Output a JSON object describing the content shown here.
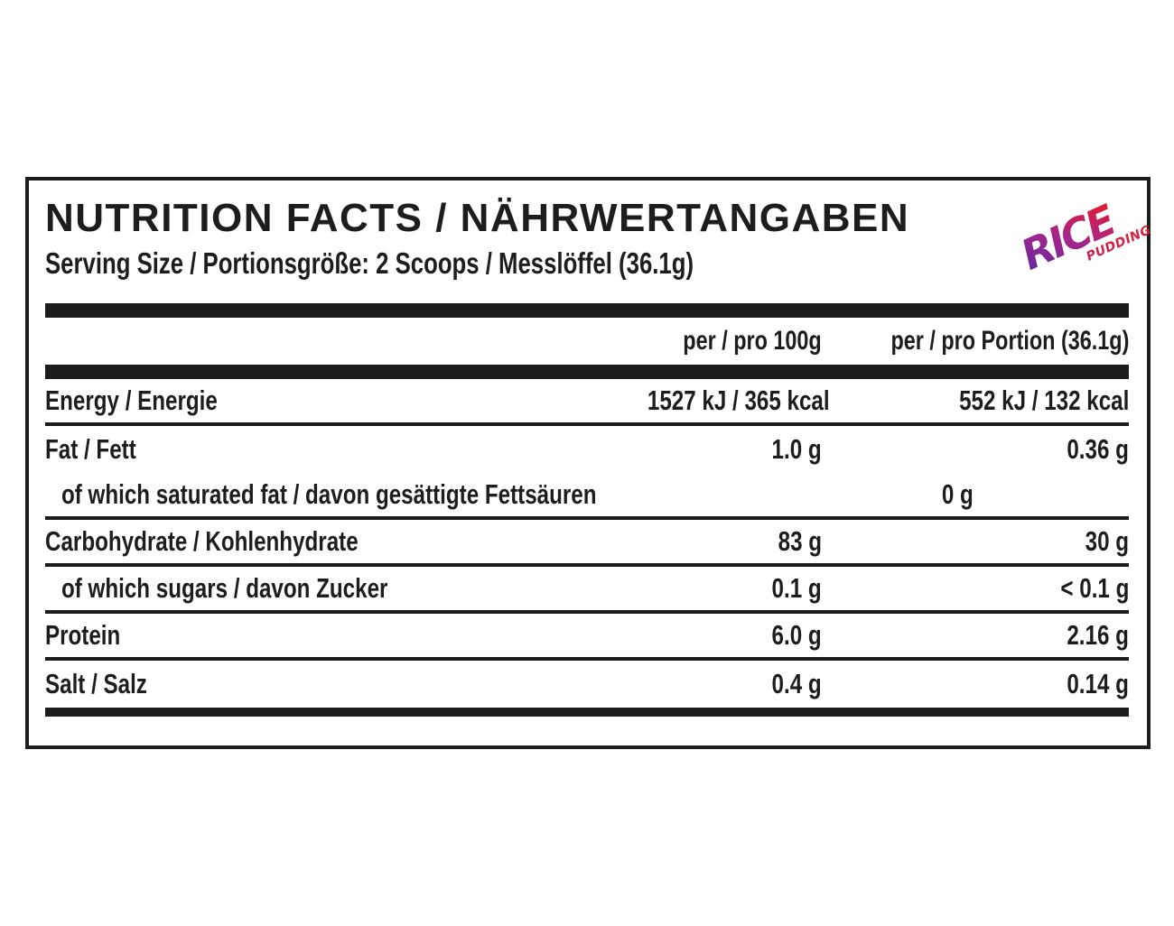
{
  "label": {
    "title": "NUTRITION FACTS / NÄHRWERTANGABEN",
    "serving_size": "Serving Size / Portionsgröße: 2 Scoops / Messlöffel (36.1g)"
  },
  "logo": {
    "brand": "RICE",
    "sub": "PUDDING",
    "gradient": {
      "start": "#5f2ba0",
      "mid": "#a82589",
      "end": "#e31b2d"
    },
    "sub_gradient": {
      "start": "#c41f5a",
      "end": "#e0202f"
    }
  },
  "table": {
    "columns": {
      "per100g": "per / pro 100g",
      "portion": "per / pro Portion (36.1g)"
    },
    "rows": [
      {
        "label": "Energy / Energie",
        "per100g": "1527 kJ / 365 kcal",
        "portion": "552 kJ / 132 kcal"
      },
      {
        "label": "Fat / Fett",
        "per100g": "1.0 g",
        "portion": "0.36 g"
      },
      {
        "label": "of which saturated fat / davon gesättigte Fettsäuren",
        "per100g": "0 g",
        "portion": "0 g"
      },
      {
        "label": "Carbohydrate / Kohlenhydrate",
        "per100g": "83 g",
        "portion": "30 g"
      },
      {
        "label": "of which sugars / davon Zucker",
        "per100g": "0.1 g",
        "portion": "< 0.1 g"
      },
      {
        "label": "Protein",
        "per100g": "6.0 g",
        "portion": "2.16 g"
      },
      {
        "label": "Salt / Salz",
        "per100g": "0.4 g",
        "portion": "0.14 g"
      }
    ]
  },
  "colors": {
    "ink": "#1d1d1b",
    "background": "#ffffff"
  }
}
